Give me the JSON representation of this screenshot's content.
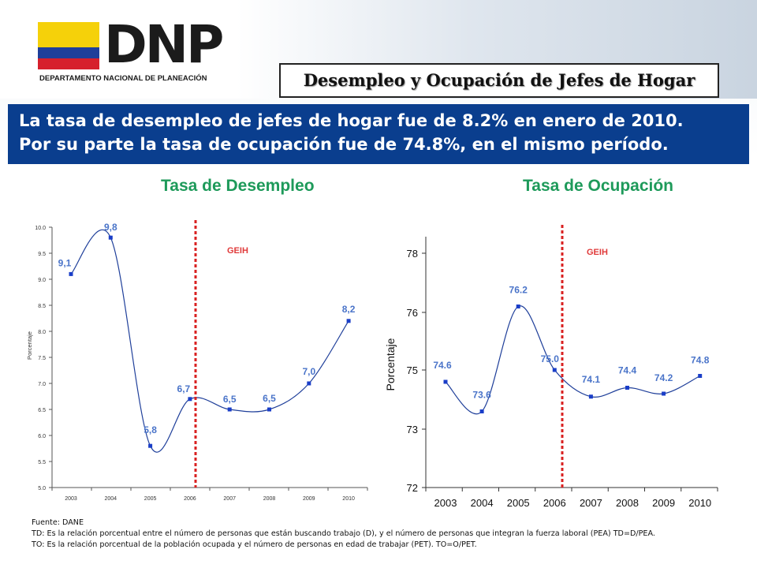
{
  "logo": {
    "name": "DNP",
    "subtitle": "DEPARTAMENTO NACIONAL DE PLANEACIÓN",
    "flag_colors": [
      "#f5d10a",
      "#1f3f9a",
      "#d6202c"
    ]
  },
  "slide_title": "Desempleo y Ocupación de Jefes de Hogar",
  "headline": [
    "La tasa de desempleo de jefes de hogar fue de 8.2% en enero de 2010.",
    "Por su parte la tasa de ocupación fue de 74.8%, en el mismo período."
  ],
  "chart_data": [
    {
      "type": "line",
      "title": "Tasa de Desempleo",
      "ylabel": "Porcentaje",
      "categories": [
        "2003",
        "2004",
        "2005",
        "2006",
        "2007",
        "2008",
        "2009",
        "2010"
      ],
      "values": [
        9.1,
        9.8,
        5.8,
        6.7,
        6.5,
        6.5,
        7.0,
        8.2
      ],
      "value_labels": [
        "9,1",
        "9,8",
        "5,8",
        "6,7",
        "6,5",
        "6,5",
        "7,0",
        "8,2"
      ],
      "yticks": [
        "5.0",
        "5.5",
        "6.0",
        "6.5",
        "7.0",
        "7.5",
        "8.0",
        "8.5",
        "9.0",
        "9.5",
        "10.0"
      ],
      "ylim": [
        5.0,
        10.0
      ],
      "annotation": "GEIH",
      "line_color": "#1f3f9a",
      "label_color": "#4a74c9",
      "marker_color": "#1a3ec8",
      "divider_color": "#d92020"
    },
    {
      "type": "line",
      "title": "Tasa de Ocupación",
      "ylabel": "Porcentaje",
      "categories": [
        "2003",
        "2004",
        "2005",
        "2006",
        "2007",
        "2008",
        "2009",
        "2010"
      ],
      "values": [
        74.6,
        73.6,
        76.2,
        75.0,
        74.1,
        74.4,
        74.2,
        74.8
      ],
      "value_labels": [
        "74.6",
        "73.6",
        "76.2",
        "75.0",
        "74.1",
        "74.4",
        "74.2",
        "74.8"
      ],
      "yticks": [
        "72",
        "73",
        "75",
        "76",
        "78"
      ],
      "annotation": "GEIH",
      "line_color": "#1f3f9a",
      "label_color": "#4a74c9",
      "marker_color": "#1a3ec8",
      "divider_color": "#d92020"
    }
  ],
  "footer": [
    "Fuente: DANE",
    "TD: Es la relación porcentual entre el número de personas que están buscando trabajo (D), y el número de personas que integran la fuerza laboral (PEA)  TD=D/PEA.",
    "TO:  Es la relación porcentual de la población ocupada  y el número de personas en edad de trabajar (PET).  TO=O/PET."
  ]
}
